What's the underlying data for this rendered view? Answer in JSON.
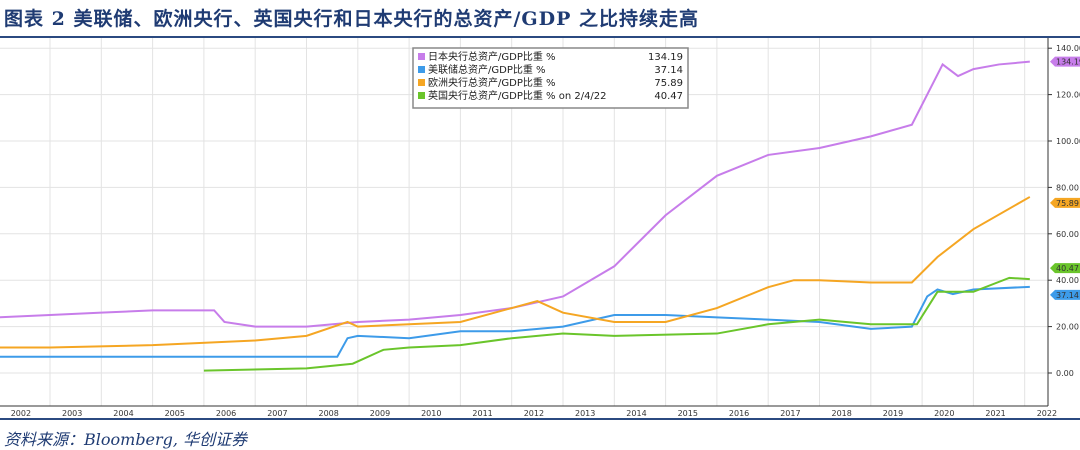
{
  "title": "图表 2 美联储、欧洲央行、英国央行和日本央行的总资产/GDP 之比持续走高",
  "source": "资料来源：Bloomberg, 华创证券",
  "chart_data": {
    "type": "line",
    "title": "美联储、欧洲央行、英国央行和日本央行的总资产/GDP 之比持续走高",
    "ylabel": "",
    "xlabel": "",
    "ylim": [
      -10,
      145
    ],
    "yticks": [
      "0.00",
      "20.00",
      "40.00",
      "60.00",
      "80.00",
      "100.00",
      "120.00",
      "140.00"
    ],
    "xticks": [
      "2002",
      "2003",
      "2004",
      "2005",
      "2006",
      "2007",
      "2008",
      "2009",
      "2010",
      "2011",
      "2012",
      "2013",
      "2014",
      "2015",
      "2016",
      "2017",
      "2018",
      "2019",
      "2020",
      "2021",
      "2022"
    ],
    "legend_position": "top-center",
    "series": [
      {
        "name": "日本央行总资产/GDP比重 %",
        "last": "134.19",
        "color": "#c77dea",
        "x": [
          2001.7,
          2002,
          2003,
          2004,
          2005,
          2006.2,
          2006.4,
          2007,
          2008,
          2009,
          2010,
          2011,
          2012,
          2013,
          2014,
          2015,
          2016,
          2017,
          2018,
          2019,
          2019.8,
          2020.1,
          2020.4,
          2020.7,
          2021,
          2021.5,
          2022.1
        ],
        "y": [
          22,
          24,
          25,
          26,
          27,
          27,
          22,
          20,
          20,
          22,
          23,
          25,
          28,
          33,
          46,
          68,
          85,
          94,
          97,
          102,
          107,
          120,
          133,
          128,
          131,
          133,
          134.19
        ]
      },
      {
        "name": "美联储总资产/GDP比重 %",
        "last": "37.14",
        "color": "#3d9be9",
        "x": [
          2001.7,
          2003,
          2005,
          2007,
          2008.6,
          2008.8,
          2009,
          2010,
          2011,
          2012,
          2013,
          2014,
          2015,
          2016,
          2017,
          2018,
          2019,
          2019.8,
          2020.1,
          2020.3,
          2020.6,
          2021,
          2022.1
        ],
        "y": [
          7,
          7,
          7,
          7,
          7,
          15,
          16,
          15,
          18,
          18,
          20,
          25,
          25,
          24,
          23,
          22,
          19,
          20,
          33,
          36,
          34,
          36,
          37.14
        ]
      },
      {
        "name": "欧洲央行总资产/GDP比重 %",
        "last": "75.89",
        "color": "#f5a623",
        "x": [
          2001.7,
          2003,
          2005,
          2007,
          2008,
          2008.8,
          2009,
          2010,
          2011,
          2012,
          2012.5,
          2013,
          2014,
          2015,
          2016,
          2017,
          2017.5,
          2018,
          2019,
          2019.8,
          2020.3,
          2021,
          2022.1
        ],
        "y": [
          11,
          11,
          12,
          14,
          16,
          22,
          20,
          21,
          22,
          28,
          31,
          26,
          22,
          22,
          28,
          37,
          40,
          40,
          39,
          39,
          50,
          62,
          75.89
        ]
      },
      {
        "name": "英国央行总资产/GDP比重 % on 2/4/22",
        "last": "40.47",
        "color": "#6ac52b",
        "x": [
          2006,
          2008,
          2008.9,
          2009.5,
          2010,
          2011,
          2012,
          2013,
          2014,
          2016,
          2017,
          2018,
          2019,
          2019.9,
          2020.3,
          2021,
          2021.7,
          2022.1
        ],
        "y": [
          1,
          2,
          4,
          10,
          11,
          12,
          15,
          17,
          16,
          17,
          21,
          23,
          21,
          21,
          35,
          35,
          41,
          40.47
        ]
      }
    ]
  }
}
